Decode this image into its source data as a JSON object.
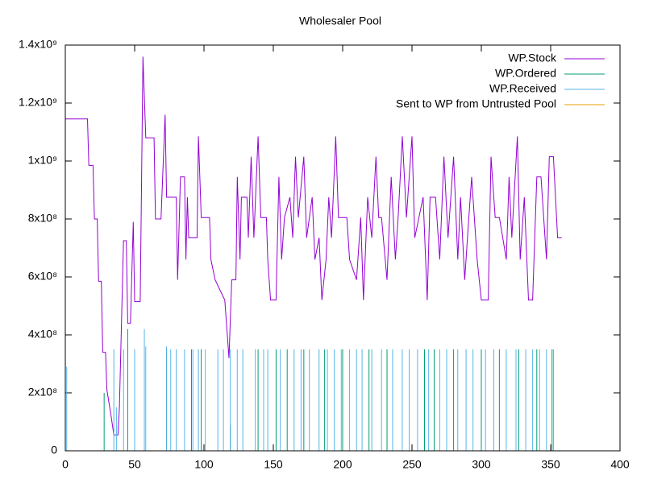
{
  "chart_data": {
    "type": "line",
    "title": "Wholesaler Pool",
    "xlim": [
      0,
      400
    ],
    "xticks": [
      0,
      50,
      100,
      150,
      200,
      250,
      300,
      350,
      400
    ],
    "ylim": [
      0,
      1400000000.0
    ],
    "yticks": [
      0,
      {
        "value": 200000000.0,
        "label": "2x10⁸"
      },
      {
        "value": 400000000.0,
        "label": "4x10⁸"
      },
      {
        "value": 600000000.0,
        "label": "6x10⁸"
      },
      {
        "value": 800000000.0,
        "label": "8x10⁸"
      },
      {
        "value": 1000000000.0,
        "label": "1x10⁹"
      },
      {
        "value": 1200000000.0,
        "label": "1.2x10⁹"
      },
      {
        "value": 1400000000.0,
        "label": "1.4x10⁹"
      }
    ],
    "legend": "top-right",
    "series": [
      {
        "name": "WP.Stock",
        "color": "#9400d3",
        "style": "line",
        "x": [
          0,
          16,
          17,
          20,
          21,
          23,
          24,
          26,
          27,
          29,
          30,
          33,
          35,
          38,
          39,
          42,
          44,
          45,
          47,
          49,
          50,
          54,
          56,
          58,
          64,
          65,
          69,
          72,
          73,
          80,
          81,
          83,
          86,
          87,
          88,
          89,
          95,
          96,
          98,
          104,
          105,
          108,
          115,
          118,
          120,
          123,
          124,
          126,
          127,
          131,
          132,
          134,
          136,
          139,
          141,
          145,
          146,
          148,
          152,
          154,
          156,
          158,
          162,
          164,
          166,
          168,
          172,
          174,
          178,
          180,
          183,
          185,
          188,
          190,
          192,
          195,
          197,
          203,
          205,
          210,
          213,
          215,
          218,
          221,
          224,
          226,
          228,
          232,
          235,
          238,
          240,
          243,
          246,
          250,
          252,
          255,
          258,
          261,
          263,
          267,
          270,
          273,
          276,
          280,
          283,
          285,
          288,
          290,
          293,
          297,
          300,
          305,
          307,
          310,
          313,
          318,
          320,
          322,
          326,
          328,
          331,
          334,
          337,
          340,
          343,
          347,
          349,
          352,
          355,
          358
        ],
        "values": [
          1145000000.0,
          1145000000.0,
          985000000.0,
          985000000.0,
          800000000.0,
          800000000.0,
          585000000.0,
          585000000.0,
          340000000.0,
          340000000.0,
          210000000.0,
          120000000.0,
          55000000.0,
          55000000.0,
          150000000.0,
          725000000.0,
          725000000.0,
          440000000.0,
          440000000.0,
          790000000.0,
          515000000.0,
          515000000.0,
          1360000000.0,
          1080000000.0,
          1080000000.0,
          800000000.0,
          800000000.0,
          1160000000.0,
          875000000.0,
          875000000.0,
          590000000.0,
          945000000.0,
          945000000.0,
          660000000.0,
          875000000.0,
          735000000.0,
          735000000.0,
          1085000000.0,
          805000000.0,
          805000000.0,
          660000000.0,
          590000000.0,
          520000000.0,
          320000000.0,
          590000000.0,
          590000000.0,
          945000000.0,
          660000000.0,
          875000000.0,
          875000000.0,
          735000000.0,
          1015000000.0,
          735000000.0,
          1085000000.0,
          805000000.0,
          805000000.0,
          660000000.0,
          520000000.0,
          520000000.0,
          945000000.0,
          660000000.0,
          805000000.0,
          875000000.0,
          735000000.0,
          1015000000.0,
          805000000.0,
          1015000000.0,
          735000000.0,
          875000000.0,
          660000000.0,
          735000000.0,
          520000000.0,
          660000000.0,
          875000000.0,
          735000000.0,
          1085000000.0,
          805000000.0,
          805000000.0,
          660000000.0,
          590000000.0,
          805000000.0,
          520000000.0,
          875000000.0,
          735000000.0,
          1015000000.0,
          805000000.0,
          805000000.0,
          590000000.0,
          945000000.0,
          660000000.0,
          805000000.0,
          1085000000.0,
          805000000.0,
          1085000000.0,
          735000000.0,
          805000000.0,
          875000000.0,
          520000000.0,
          875000000.0,
          875000000.0,
          660000000.0,
          1015000000.0,
          735000000.0,
          1015000000.0,
          660000000.0,
          875000000.0,
          590000000.0,
          735000000.0,
          945000000.0,
          660000000.0,
          520000000.0,
          520000000.0,
          1015000000.0,
          805000000.0,
          805000000.0,
          660000000.0,
          945000000.0,
          735000000.0,
          1085000000.0,
          660000000.0,
          875000000.0,
          520000000.0,
          520000000.0,
          945000000.0,
          945000000.0,
          660000000.0,
          1015000000.0,
          1015000000.0,
          735000000.0,
          735000000.0
        ]
      },
      {
        "name": "WP.Ordered",
        "color": "#009e73",
        "style": "impulses",
        "x": [
          0,
          28,
          45,
          73,
          91,
          98,
          119,
          139,
          152,
          160,
          172,
          187,
          200,
          219,
          232,
          259,
          266,
          280,
          300,
          313,
          327,
          340,
          351
        ],
        "values": [
          800000000.0,
          200000000.0,
          420000000.0,
          350000000.0,
          350000000.0,
          350000000.0,
          90000000.0,
          350000000.0,
          350000000.0,
          350000000.0,
          350000000.0,
          350000000.0,
          350000000.0,
          350000000.0,
          350000000.0,
          350000000.0,
          350000000.0,
          350000000.0,
          350000000.0,
          350000000.0,
          350000000.0,
          350000000.0,
          350000000.0
        ]
      },
      {
        "name": "WP.Received",
        "color": "#56b4e9",
        "style": "impulses",
        "x": [
          1,
          35,
          37,
          42,
          50,
          57,
          58,
          73,
          76,
          80,
          86,
          92,
          96,
          101,
          110,
          114,
          119,
          124,
          128,
          137,
          143,
          146,
          155,
          165,
          170,
          176,
          183,
          189,
          194,
          199,
          205,
          210,
          214,
          221,
          228,
          236,
          243,
          248,
          254,
          262,
          270,
          275,
          283,
          289,
          294,
          303,
          309,
          318,
          325,
          332,
          337,
          342,
          347,
          352
        ],
        "values": [
          290000000.0,
          350000000.0,
          150000000.0,
          350000000.0,
          350000000.0,
          420000000.0,
          360000000.0,
          360000000.0,
          350000000.0,
          350000000.0,
          350000000.0,
          350000000.0,
          350000000.0,
          350000000.0,
          350000000.0,
          350000000.0,
          350000000.0,
          350000000.0,
          350000000.0,
          350000000.0,
          350000000.0,
          350000000.0,
          350000000.0,
          350000000.0,
          350000000.0,
          350000000.0,
          350000000.0,
          350000000.0,
          350000000.0,
          350000000.0,
          350000000.0,
          350000000.0,
          350000000.0,
          350000000.0,
          350000000.0,
          350000000.0,
          350000000.0,
          350000000.0,
          350000000.0,
          350000000.0,
          350000000.0,
          350000000.0,
          350000000.0,
          350000000.0,
          350000000.0,
          350000000.0,
          350000000.0,
          350000000.0,
          350000000.0,
          350000000.0,
          350000000.0,
          350000000.0,
          350000000.0,
          350000000.0
        ]
      },
      {
        "name": "Sent to WP from Untrusted Pool",
        "color": "#e69f00",
        "style": "line",
        "x": [],
        "values": []
      }
    ]
  }
}
